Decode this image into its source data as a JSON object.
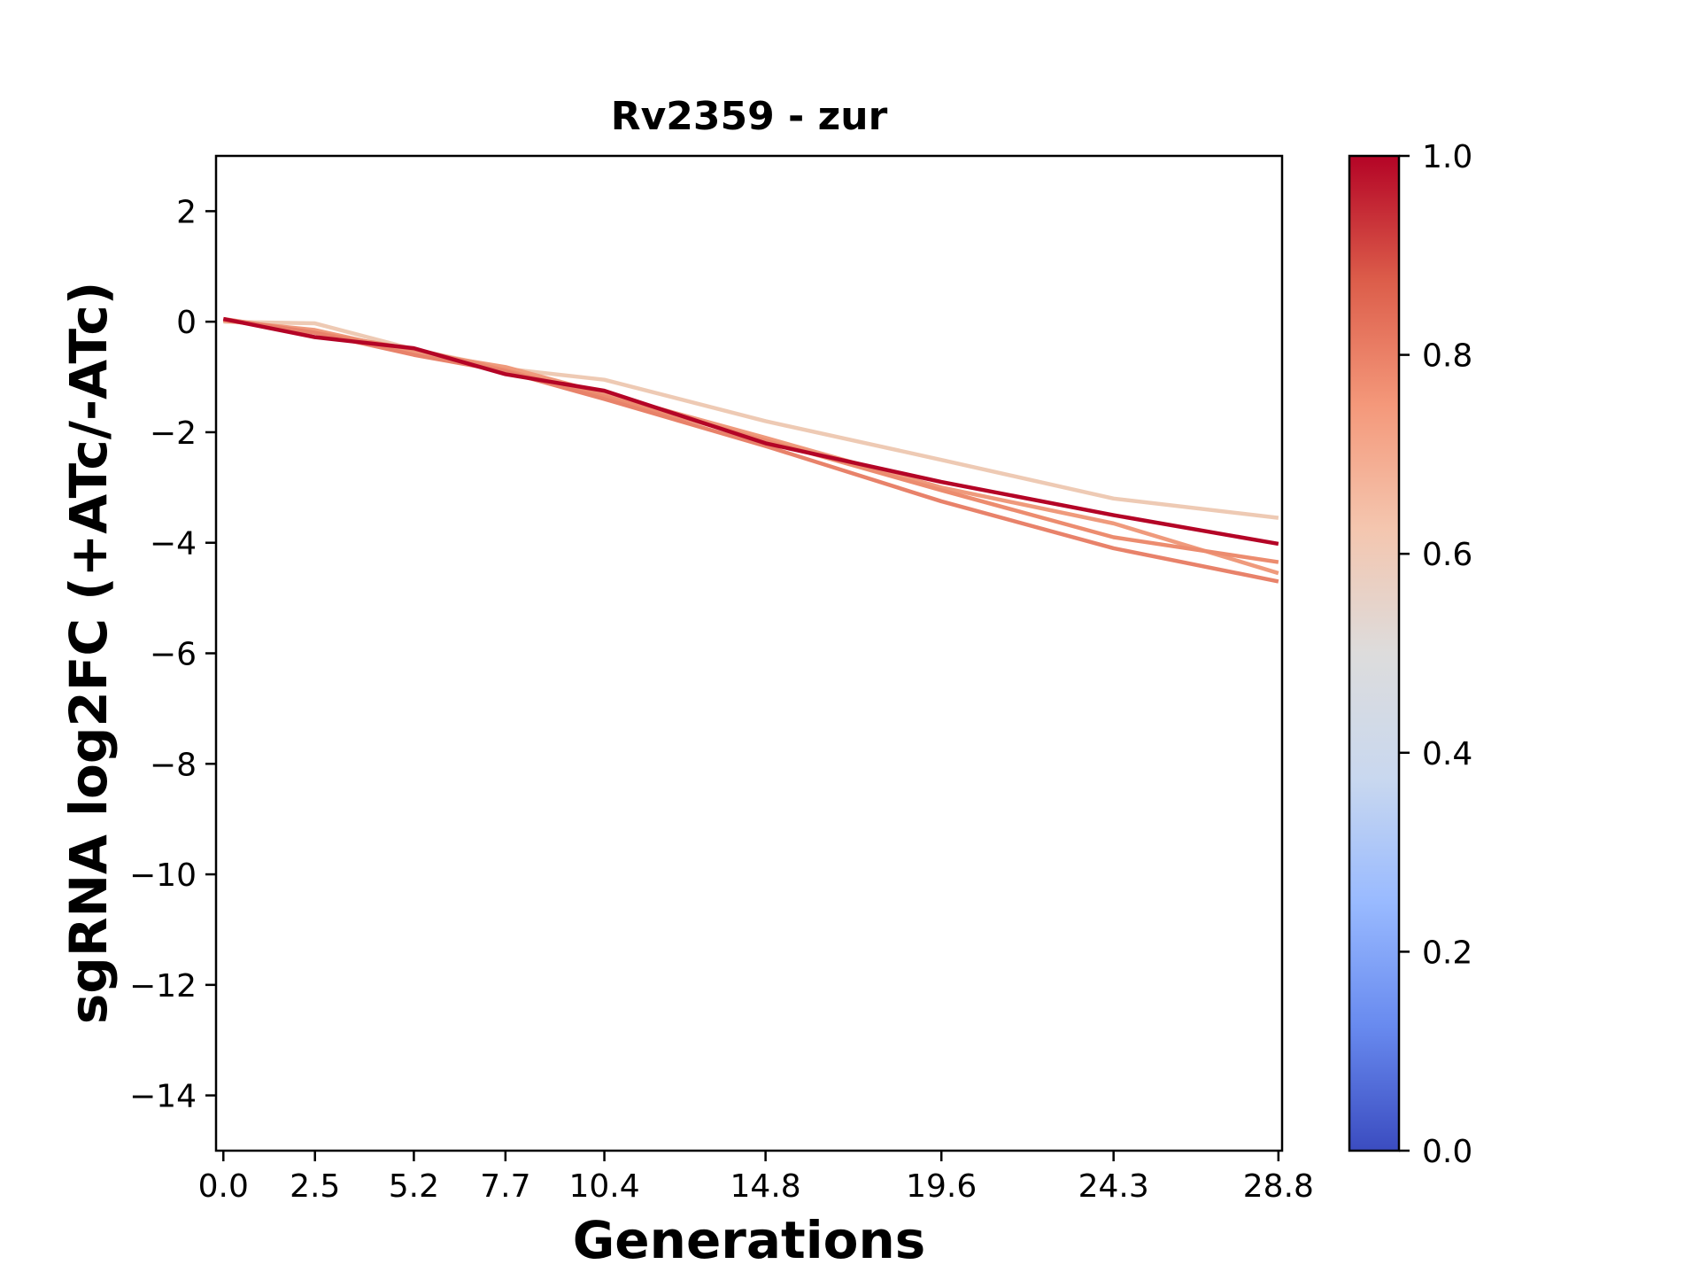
{
  "chart_data": {
    "type": "line",
    "title": "Rv2359 - zur",
    "xlabel": "Generations",
    "ylabel": "sgRNA log2FC (+ATc/-ATc)",
    "x": [
      0.0,
      2.5,
      5.2,
      7.7,
      10.4,
      14.8,
      19.6,
      24.3,
      28.8
    ],
    "x_tick_labels": [
      "0.0",
      "2.5",
      "5.2",
      "7.7",
      "10.4",
      "14.8",
      "19.6",
      "24.3",
      "28.8"
    ],
    "xlim": [
      -0.2,
      28.9
    ],
    "ylim": [
      -15,
      3
    ],
    "y_ticks": [
      2,
      0,
      -2,
      -4,
      -6,
      -8,
      -10,
      -12,
      -14
    ],
    "y_tick_labels": [
      "2",
      "0",
      "−2",
      "−4",
      "−6",
      "−8",
      "−10",
      "−12",
      "−14"
    ],
    "grid": false,
    "series": [
      {
        "color_value": 0.62,
        "color": "#eecab4",
        "values": [
          0.0,
          -0.03,
          -0.5,
          -0.85,
          -1.05,
          -1.8,
          -2.5,
          -3.2,
          -3.55
        ]
      },
      {
        "color_value": 0.78,
        "color": "#ef9a7c",
        "values": [
          0.02,
          -0.15,
          -0.55,
          -0.82,
          -1.3,
          -2.1,
          -3.0,
          -3.65,
          -4.55
        ]
      },
      {
        "color_value": 0.8,
        "color": "#ec8c6f",
        "values": [
          0.03,
          -0.2,
          -0.5,
          -0.88,
          -1.35,
          -2.15,
          -3.05,
          -3.9,
          -4.35
        ]
      },
      {
        "color_value": 0.82,
        "color": "#e8826a",
        "values": [
          0.05,
          -0.2,
          -0.6,
          -0.9,
          -1.4,
          -2.25,
          -3.25,
          -4.1,
          -4.7
        ]
      },
      {
        "color_value": 1.0,
        "color": "#b40426",
        "values": [
          0.05,
          -0.28,
          -0.48,
          -0.95,
          -1.25,
          -2.2,
          -2.9,
          -3.5,
          -4.02
        ]
      }
    ],
    "colorbar": {
      "range": [
        0.0,
        1.0
      ],
      "tick_values": [
        0.0,
        0.2,
        0.4,
        0.6,
        0.8,
        1.0
      ],
      "tick_labels": [
        "0.0",
        "0.2",
        "0.4",
        "0.6",
        "0.8",
        "1.0"
      ],
      "colormap": "coolwarm",
      "colors": [
        "#3b4cc0",
        "#688aef",
        "#99baff",
        "#c9d8ef",
        "#dddcdc",
        "#f4c6af",
        "#f4987a",
        "#dc5d4a",
        "#b40426"
      ]
    }
  }
}
